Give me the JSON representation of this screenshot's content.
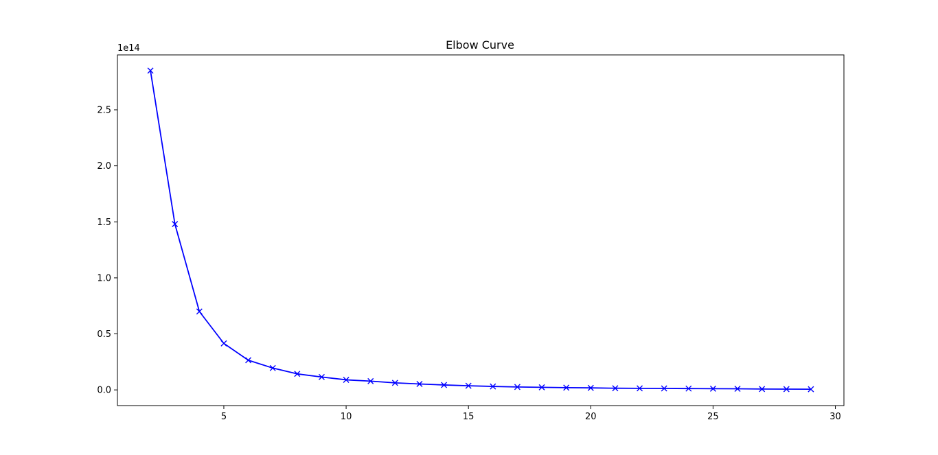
{
  "chart_data": {
    "type": "line",
    "title": "Elbow Curve",
    "xlabel": "",
    "ylabel": "",
    "y_offset_text": "1e14",
    "xlim": [
      0.65,
      30.35
    ],
    "ylim": [
      -0.14,
      2.99
    ],
    "x_ticks": [
      5,
      10,
      15,
      20,
      25,
      30
    ],
    "x_tick_labels": [
      "5",
      "10",
      "15",
      "20",
      "25",
      "30"
    ],
    "y_ticks": [
      0.0,
      0.5,
      1.0,
      1.5,
      2.0,
      2.5
    ],
    "y_tick_labels": [
      "0.0",
      "0.5",
      "1.0",
      "1.5",
      "2.0",
      "2.5"
    ],
    "grid": false,
    "series": [
      {
        "color": "#0000ff",
        "marker": "x",
        "x": [
          2,
          3,
          4,
          5,
          6,
          7,
          8,
          9,
          10,
          11,
          12,
          13,
          14,
          15,
          16,
          17,
          18,
          19,
          20,
          21,
          22,
          23,
          24,
          25,
          26,
          27,
          28,
          29
        ],
        "y": [
          2.85,
          1.48,
          0.7,
          0.415,
          0.265,
          0.195,
          0.143,
          0.115,
          0.09,
          0.078,
          0.063,
          0.053,
          0.044,
          0.037,
          0.031,
          0.026,
          0.023,
          0.02,
          0.018,
          0.015,
          0.014,
          0.013,
          0.012,
          0.011,
          0.01,
          0.008,
          0.007,
          0.006
        ]
      }
    ]
  }
}
